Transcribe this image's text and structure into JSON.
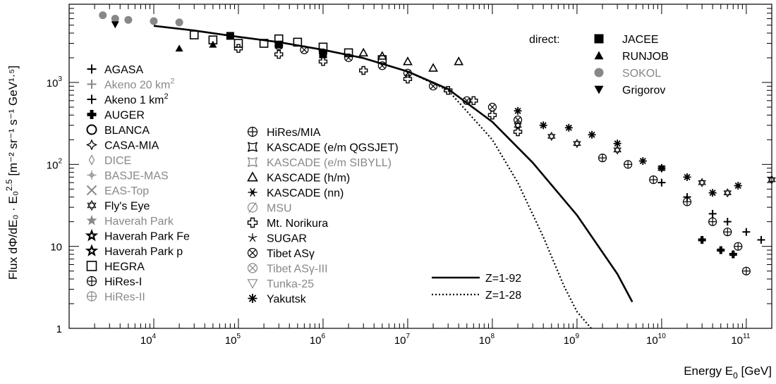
{
  "chart_data": {
    "type": "scatter",
    "xaxis": {
      "label": "Energy E",
      "label_sub": "0",
      "label_unit": " [GeV]",
      "scale": "log",
      "range": [
        1000,
        200000000000
      ],
      "ticks": [
        {
          "base": "10",
          "exp": "4",
          "value": 10000
        },
        {
          "base": "10",
          "exp": "5",
          "value": 100000
        },
        {
          "base": "10",
          "exp": "6",
          "value": 1000000
        },
        {
          "base": "10",
          "exp": "7",
          "value": 10000000
        },
        {
          "base": "10",
          "exp": "8",
          "value": 100000000
        },
        {
          "base": "10",
          "exp": "9",
          "value": 1000000000
        },
        {
          "base": "10",
          "exp": "10",
          "value": 10000000000
        },
        {
          "base": "10",
          "exp": "11",
          "value": 100000000000
        }
      ]
    },
    "yaxis": {
      "label": "Flux dΦ/dE₀ · E₀",
      "label_sup": "2.5",
      "label_unit": " [m⁻² sr⁻¹ s⁻¹ GeV¹·⁵]",
      "scale": "log",
      "range": [
        1,
        9000
      ],
      "ticks": [
        {
          "text": "1",
          "value": 1
        },
        {
          "text": "10",
          "value": 10
        },
        {
          "base": "10",
          "exp": "2",
          "value": 100
        },
        {
          "base": "10",
          "exp": "3",
          "value": 1000
        }
      ]
    },
    "legend_direct_title": "direct:",
    "legend_direct": [
      {
        "name": "JACEE",
        "marker": "square",
        "color": "#000000"
      },
      {
        "name": "RUNJOB",
        "marker": "triangle-up",
        "color": "#000000"
      },
      {
        "name": "SOKOL",
        "marker": "circle",
        "color": "#888888"
      },
      {
        "name": "Grigorov",
        "marker": "triangle-down",
        "color": "#000000"
      }
    ],
    "legend_col1": [
      {
        "name": "AGASA",
        "marker": "plus",
        "color": "#000000"
      },
      {
        "name": "Akeno 20 km",
        "sup": "2",
        "marker": "plus",
        "color": "#888888"
      },
      {
        "name": "Akeno 1 km",
        "sup": "2",
        "marker": "plus",
        "color": "#000000"
      },
      {
        "name": "AUGER",
        "marker": "fat-cross",
        "color": "#000000"
      },
      {
        "name": "BLANCA",
        "marker": "open-circle",
        "color": "#000000"
      },
      {
        "name": "CASA-MIA",
        "marker": "four-star",
        "color": "#000000"
      },
      {
        "name": "DICE",
        "marker": "diamond",
        "color": "#888888"
      },
      {
        "name": "BASJE-MAS",
        "marker": "plus-ring",
        "color": "#888888"
      },
      {
        "name": "EAS-Top",
        "marker": "x",
        "color": "#888888"
      },
      {
        "name": "Fly's Eye",
        "marker": "star6",
        "color": "#000000"
      },
      {
        "name": "Haverah Park",
        "marker": "star5-filled",
        "color": "#888888"
      },
      {
        "name": "Haverah Park Fe",
        "marker": "star5-open",
        "color": "#000000"
      },
      {
        "name": "Haverah Park p",
        "marker": "star5-open",
        "color": "#000000"
      },
      {
        "name": "HEGRA",
        "marker": "open-square",
        "color": "#000000"
      },
      {
        "name": "HiRes-I",
        "marker": "circle-plus",
        "color": "#000000"
      },
      {
        "name": "HiRes-II",
        "marker": "circle-plus",
        "color": "#888888"
      }
    ],
    "legend_col2": [
      {
        "name": "HiRes/MIA",
        "marker": "circle-plus",
        "color": "#000000"
      },
      {
        "name": "KASCADE (e/m QGSJET)",
        "marker": "curved-square",
        "color": "#000000"
      },
      {
        "name": "KASCADE (e/m SIBYLL)",
        "marker": "curved-square",
        "color": "#888888"
      },
      {
        "name": "KASCADE (h/m)",
        "marker": "open-triangle",
        "color": "#000000"
      },
      {
        "name": "KASCADE (nn)",
        "marker": "snowflake",
        "color": "#000000"
      },
      {
        "name": "MSU",
        "marker": "circle-slash",
        "color": "#888888"
      },
      {
        "name": "Mt. Norikura",
        "marker": "open-cross",
        "color": "#000000"
      },
      {
        "name": "SUGAR",
        "marker": "thin-star",
        "color": "#000000"
      },
      {
        "name": "Tibet ASγ",
        "marker": "circle-x",
        "color": "#000000"
      },
      {
        "name": "Tibet ASγ-III",
        "marker": "circle-x",
        "color": "#888888"
      },
      {
        "name": "Tunka-25",
        "marker": "triangle-down-open",
        "color": "#888888"
      },
      {
        "name": "Yakutsk",
        "marker": "asterisk",
        "color": "#000000"
      }
    ],
    "lines": [
      {
        "name": "Z=1-92",
        "style": "solid",
        "x": [
          10000,
          30000,
          100000,
          300000,
          1000000,
          3000000,
          10000000,
          30000000,
          100000000,
          300000000,
          1000000000,
          3000000000,
          4500000000
        ],
        "y": [
          4900,
          4300,
          3600,
          3100,
          2500,
          1980,
          1360,
          830,
          330,
          105,
          24,
          4.6,
          2.1
        ]
      },
      {
        "name": "Z=1-28",
        "style": "dotted",
        "x": [
          10000,
          30000,
          100000,
          300000,
          1000000,
          3000000,
          10000000,
          30000000,
          100000000,
          200000000,
          400000000,
          700000000,
          1000000000,
          1600000000
        ],
        "y": [
          4900,
          4300,
          3600,
          3100,
          2500,
          1980,
          1360,
          800,
          200,
          60,
          13,
          3.3,
          1.6,
          0.9
        ]
      }
    ],
    "series": [
      {
        "name": "SOKOL",
        "marker": "circle",
        "color": "#888888",
        "x": [
          2500,
          3500,
          5000,
          10000,
          20000
        ],
        "y": [
          6600,
          6000,
          5800,
          5600,
          5400
        ]
      },
      {
        "name": "Grigorov",
        "marker": "triangle-down",
        "color": "#000000",
        "x": [
          3500
        ],
        "y": [
          5100
        ]
      },
      {
        "name": "JACEE",
        "marker": "square",
        "color": "#000000",
        "x": [
          80000,
          300000,
          1000000
        ],
        "y": [
          3700,
          2900,
          2200
        ]
      },
      {
        "name": "RUNJOB",
        "marker": "triangle-up",
        "color": "#000000",
        "x": [
          20000,
          50000
        ],
        "y": [
          2600,
          2900
        ]
      },
      {
        "name": "HEGRA",
        "marker": "open-square",
        "color": "#000000",
        "x": [
          30000,
          50000,
          100000,
          200000,
          300000,
          500000,
          1000000,
          2000000,
          5000000
        ],
        "y": [
          3800,
          3300,
          3000,
          3000,
          3400,
          3100,
          2700,
          2300,
          1900
        ]
      },
      {
        "name": "KASCADE (h/m)",
        "marker": "open-triangle",
        "color": "#000000",
        "x": [
          3000000,
          5000000,
          10000000,
          20000000,
          40000000
        ],
        "y": [
          2300,
          2100,
          1800,
          1500,
          1800
        ]
      },
      {
        "name": "Tibet ASγ",
        "marker": "circle-x",
        "color": "#000000",
        "x": [
          300000,
          600000,
          1000000,
          2000000,
          5000000,
          10000000,
          20000000,
          50000000,
          100000000,
          200000000
        ],
        "y": [
          2800,
          2500,
          2300,
          2000,
          1600,
          1300,
          900,
          600,
          500,
          350
        ]
      },
      {
        "name": "Mt. Norikura",
        "marker": "open-cross",
        "color": "#000000",
        "x": [
          100000,
          300000,
          1000000,
          3000000,
          10000000,
          30000000,
          60000000,
          100000000,
          200000000
        ],
        "y": [
          2600,
          2200,
          1800,
          1400,
          1100,
          800,
          600,
          400,
          250
        ]
      },
      {
        "name": "Yakutsk",
        "marker": "asterisk",
        "color": "#000000",
        "x": [
          200000000,
          400000000,
          800000000,
          1500000000,
          3000000000,
          6000000000,
          10000000000,
          20000000000,
          40000000000,
          80000000000
        ],
        "y": [
          450,
          300,
          280,
          230,
          180,
          110,
          90,
          70,
          45,
          55
        ]
      },
      {
        "name": "Fly's Eye",
        "marker": "star6",
        "color": "#000000",
        "x": [
          200000000,
          500000000,
          1000000000,
          3000000000,
          10000000000,
          30000000000,
          60000000000,
          200000000000
        ],
        "y": [
          300,
          220,
          180,
          150,
          90,
          60,
          45,
          65
        ]
      },
      {
        "name": "HiRes-I",
        "marker": "circle-plus",
        "color": "#000000",
        "x": [
          2000000000,
          4000000000,
          8000000000,
          20000000000,
          40000000000,
          60000000000,
          80000000000,
          100000000000
        ],
        "y": [
          120,
          100,
          65,
          35,
          20,
          15,
          10,
          5
        ]
      },
      {
        "name": "AGASA",
        "marker": "plus",
        "color": "#000000",
        "x": [
          10000000000,
          20000000000,
          40000000000,
          60000000000,
          100000000000,
          150000000000
        ],
        "y": [
          60,
          40,
          25,
          20,
          15,
          12
        ]
      },
      {
        "name": "AUGER",
        "marker": "fat-cross",
        "color": "#000000",
        "x": [
          30000000000,
          50000000000,
          70000000000
        ],
        "y": [
          12,
          9,
          8
        ]
      }
    ]
  }
}
